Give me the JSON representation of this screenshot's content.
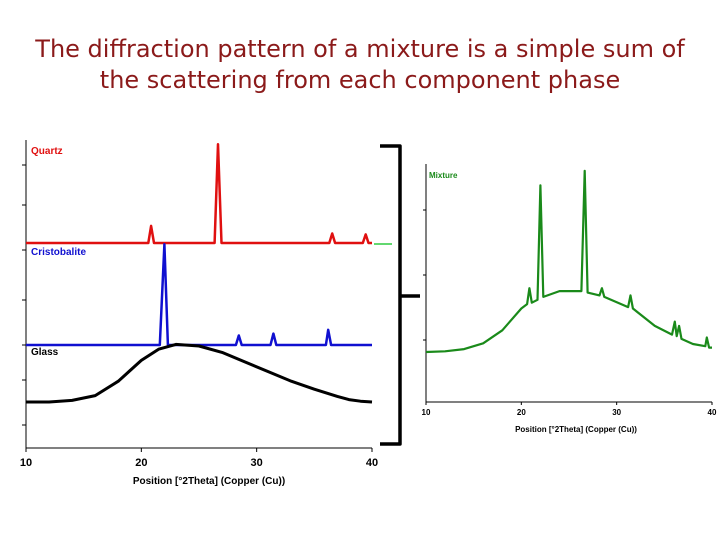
{
  "slide": {
    "title_line1": "The diffraction pattern of a mixture is a simple sum of",
    "title_line2": "the scattering from each component phase"
  },
  "colors": {
    "title": "#8b1a1a",
    "quartz": "#e01010",
    "cristobalite": "#1010d0",
    "glass": "#000000",
    "mixture": "#1a8a1a"
  },
  "chart_data": [
    {
      "type": "line",
      "title": "",
      "xlabel": "Position [°2Theta] (Copper (Cu))",
      "ylabel": "",
      "xlim": [
        10,
        40
      ],
      "xticks": [
        10,
        20,
        30,
        40
      ],
      "grid": false,
      "series": [
        {
          "name": "Quartz",
          "color": "#e01010",
          "baseline": 0.0,
          "points": [
            [
              10,
              0
            ],
            [
              20.6,
              0
            ],
            [
              20.85,
              0.9
            ],
            [
              21.1,
              0
            ],
            [
              26.35,
              0
            ],
            [
              26.65,
              5.2
            ],
            [
              26.95,
              0
            ],
            [
              36.3,
              0
            ],
            [
              36.55,
              0.5
            ],
            [
              36.8,
              0
            ],
            [
              39.2,
              0
            ],
            [
              39.45,
              0.45
            ],
            [
              39.7,
              0
            ],
            [
              40,
              0
            ]
          ]
        },
        {
          "name": "Cristobalite",
          "color": "#1010d0",
          "baseline": 0.0,
          "points": [
            [
              10,
              0
            ],
            [
              21.6,
              0
            ],
            [
              22.0,
              5.3
            ],
            [
              22.3,
              0
            ],
            [
              28.2,
              0
            ],
            [
              28.45,
              0.5
            ],
            [
              28.7,
              0
            ],
            [
              31.2,
              0
            ],
            [
              31.45,
              0.6
            ],
            [
              31.7,
              0
            ],
            [
              36.0,
              0
            ],
            [
              36.2,
              0.8
            ],
            [
              36.45,
              0
            ],
            [
              40,
              0
            ]
          ]
        },
        {
          "name": "Glass",
          "color": "#000000",
          "baseline": 0.0,
          "points": [
            [
              10,
              0
            ],
            [
              12,
              0
            ],
            [
              14,
              0.1
            ],
            [
              16,
              0.4
            ],
            [
              18,
              1.3
            ],
            [
              20,
              2.6
            ],
            [
              21.5,
              3.3
            ],
            [
              23,
              3.6
            ],
            [
              25,
              3.5
            ],
            [
              27,
              3.1
            ],
            [
              29,
              2.5
            ],
            [
              31,
              1.9
            ],
            [
              33,
              1.3
            ],
            [
              35,
              0.8
            ],
            [
              37,
              0.35
            ],
            [
              38,
              0.15
            ],
            [
              39,
              0.05
            ],
            [
              40,
              0
            ]
          ]
        }
      ]
    },
    {
      "type": "line",
      "title": "",
      "xlabel": "Position [°2Theta] (Copper (Cu))",
      "ylabel": "",
      "xlim": [
        10,
        40
      ],
      "xticks": [
        10,
        20,
        30,
        40
      ],
      "grid": false,
      "series": [
        {
          "name": "Mixture",
          "color": "#1a8a1a",
          "points": [
            [
              10,
              0
            ],
            [
              12,
              0.05
            ],
            [
              14,
              0.2
            ],
            [
              16,
              0.6
            ],
            [
              18,
              1.5
            ],
            [
              20,
              3.0
            ],
            [
              20.6,
              3.3
            ],
            [
              20.85,
              4.4
            ],
            [
              21.1,
              3.4
            ],
            [
              21.7,
              3.6
            ],
            [
              22.0,
              11.5
            ],
            [
              22.3,
              3.8
            ],
            [
              24,
              4.2
            ],
            [
              26.3,
              4.2
            ],
            [
              26.65,
              12.5
            ],
            [
              26.95,
              4.1
            ],
            [
              28.2,
              3.9
            ],
            [
              28.45,
              4.4
            ],
            [
              28.7,
              3.8
            ],
            [
              31.2,
              3.1
            ],
            [
              31.45,
              3.9
            ],
            [
              31.7,
              3.0
            ],
            [
              34,
              1.8
            ],
            [
              35.8,
              1.2
            ],
            [
              36.1,
              2.1
            ],
            [
              36.3,
              1.1
            ],
            [
              36.55,
              1.8
            ],
            [
              36.8,
              0.9
            ],
            [
              38,
              0.55
            ],
            [
              39.3,
              0.4
            ],
            [
              39.45,
              1.0
            ],
            [
              39.7,
              0.3
            ],
            [
              40,
              0.3
            ]
          ]
        }
      ]
    }
  ]
}
